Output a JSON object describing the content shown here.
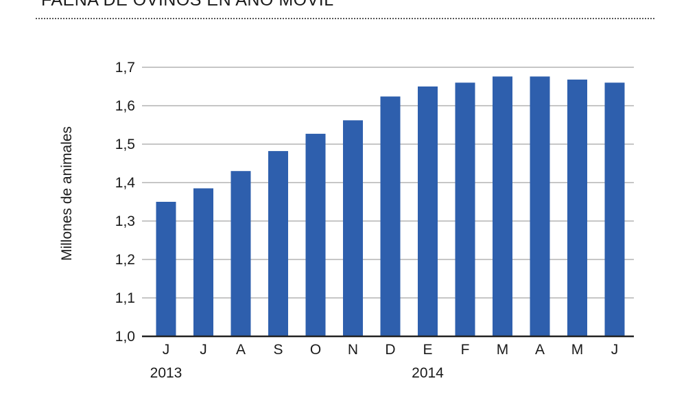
{
  "header": {
    "title": "FAENA DE OVINOS EN AÑO MÓVIL"
  },
  "colors": {
    "bar": "#2e5fad",
    "grid": "#c6c6c6",
    "axis": "#222222",
    "text": "#1a1a1a"
  },
  "chart_data": {
    "type": "bar",
    "title": "FAENA DE OVINOS EN AÑO MÓVIL",
    "xlabel": "",
    "ylabel": "Millones de animales",
    "categories": [
      "J",
      "J",
      "A",
      "S",
      "O",
      "N",
      "D",
      "E",
      "F",
      "M",
      "A",
      "M",
      "J"
    ],
    "year_labels": [
      {
        "label": "2013",
        "category_index": 0
      },
      {
        "label": "2014",
        "category_index": 7
      }
    ],
    "values": [
      1.35,
      1.385,
      1.43,
      1.482,
      1.527,
      1.562,
      1.624,
      1.65,
      1.66,
      1.676,
      1.676,
      1.668,
      1.66
    ],
    "ylim": [
      1.0,
      1.7
    ],
    "yticks": [
      1.0,
      1.1,
      1.2,
      1.3,
      1.4,
      1.5,
      1.6,
      1.7
    ],
    "ytick_labels": [
      "1,0",
      "1,1",
      "1,2",
      "1,3",
      "1,4",
      "1,5",
      "1,6",
      "1,7"
    ],
    "grid": true,
    "legend": "none"
  }
}
